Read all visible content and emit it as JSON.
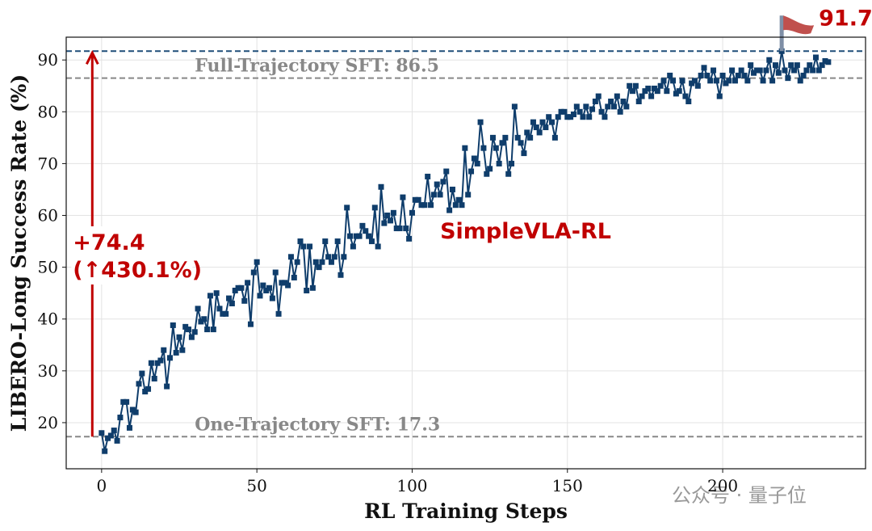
{
  "chart_data": {
    "type": "line",
    "xlabel": "RL Training Steps",
    "ylabel": "LIBERO-Long Success Rate (%)",
    "xlim": [
      -11.4,
      246
    ],
    "ylim": [
      11.1,
      94.4
    ],
    "xticks": [
      0,
      50,
      100,
      150,
      200
    ],
    "yticks": [
      20,
      30,
      40,
      50,
      60,
      70,
      80,
      90
    ],
    "grid": true,
    "series": [
      {
        "name": "SimpleVLA-RL",
        "color": "#0f3d6b",
        "x": [
          0,
          1,
          2,
          3,
          4,
          5,
          6,
          7,
          8,
          9,
          10,
          11,
          12,
          13,
          14,
          15,
          16,
          17,
          18,
          19,
          20,
          21,
          22,
          23,
          24,
          25,
          26,
          27,
          28,
          29,
          30,
          31,
          32,
          33,
          34,
          35,
          36,
          37,
          38,
          39,
          40,
          41,
          42,
          43,
          44,
          45,
          46,
          47,
          48,
          49,
          50,
          51,
          52,
          53,
          54,
          55,
          56,
          57,
          58,
          59,
          60,
          61,
          62,
          63,
          64,
          65,
          66,
          67,
          68,
          69,
          70,
          71,
          72,
          73,
          74,
          75,
          76,
          77,
          78,
          79,
          80,
          81,
          82,
          83,
          84,
          85,
          86,
          87,
          88,
          89,
          90,
          91,
          92,
          93,
          94,
          95,
          96,
          97,
          98,
          99,
          100,
          101,
          102,
          103,
          104,
          105,
          106,
          107,
          108,
          109,
          110,
          111,
          112,
          113,
          114,
          115,
          116,
          117,
          118,
          119,
          120,
          121,
          122,
          123,
          124,
          125,
          126,
          127,
          128,
          129,
          130,
          131,
          132,
          133,
          134,
          135,
          136,
          137,
          138,
          139,
          140,
          141,
          142,
          143,
          144,
          145,
          146,
          147,
          148,
          149,
          150,
          151,
          152,
          153,
          154,
          155,
          156,
          157,
          158,
          159,
          160,
          161,
          162,
          163,
          164,
          165,
          166,
          167,
          168,
          169,
          170,
          171,
          172,
          173,
          174,
          175,
          176,
          177,
          178,
          179,
          180,
          181,
          182,
          183,
          184,
          185,
          186,
          187,
          188,
          189,
          190,
          191,
          192,
          193,
          194,
          195,
          196,
          197,
          198,
          199,
          200,
          201,
          202,
          203,
          204,
          205,
          206,
          207,
          208,
          209,
          210,
          211,
          212,
          213,
          214,
          215,
          216,
          217,
          218,
          219,
          220,
          221,
          222,
          223,
          224,
          225,
          226,
          227,
          228,
          229,
          230,
          231,
          232,
          233,
          234
        ],
        "values": [
          18,
          14.5,
          17,
          17.5,
          18.5,
          16.5,
          21,
          24,
          24,
          19,
          22.5,
          22,
          27.5,
          29.5,
          26,
          26.5,
          31.5,
          28.5,
          31.5,
          32,
          34,
          27,
          32.5,
          38.8,
          33.5,
          36.5,
          34,
          38.5,
          38,
          36.5,
          37.5,
          42,
          39.5,
          40,
          38,
          44.5,
          38,
          45,
          42,
          41,
          41,
          44,
          43,
          45.5,
          46,
          46,
          43.5,
          47,
          39,
          49,
          51,
          44.5,
          46.5,
          45.5,
          46,
          44,
          49,
          41,
          47,
          47,
          46.5,
          52,
          48,
          51,
          55,
          54,
          45.5,
          54,
          46,
          51,
          50,
          51,
          55,
          52,
          51,
          52,
          55,
          48.5,
          52,
          61.5,
          56,
          54,
          56,
          56,
          58,
          57,
          56,
          55,
          61.5,
          54,
          65.5,
          58.5,
          60,
          59,
          60.5,
          57.5,
          57.5,
          63.5,
          57.5,
          55.5,
          60.5,
          63,
          63,
          62,
          62,
          67.5,
          62,
          64,
          66,
          64,
          66.5,
          68.5,
          61,
          65,
          62,
          63,
          62,
          73,
          64,
          68.5,
          71,
          70,
          78,
          73,
          68,
          69,
          75,
          73,
          70,
          74,
          75,
          68,
          70,
          81,
          75,
          74,
          72,
          76,
          75,
          78,
          77,
          76,
          78,
          77,
          79,
          78,
          75,
          79,
          80,
          80,
          79,
          79,
          79.5,
          81,
          80,
          79,
          81,
          79,
          80.5,
          82,
          83,
          80,
          79,
          81,
          82,
          81,
          83,
          80,
          82,
          81,
          85,
          84,
          85,
          82,
          83,
          84,
          84.5,
          83,
          84.5,
          84,
          85,
          86,
          84,
          87,
          86,
          83.5,
          84,
          86,
          83,
          82,
          85.5,
          86,
          85,
          87,
          88.5,
          87,
          86,
          88,
          86,
          83,
          87,
          85.5,
          86,
          88,
          86,
          87,
          88,
          87,
          86,
          89,
          87.5,
          88,
          88,
          86,
          88,
          90,
          86,
          89,
          87.5,
          91.7,
          88,
          86.5,
          89,
          88,
          89,
          86,
          87,
          88,
          89,
          88,
          90.5,
          88,
          89,
          89.8,
          89.6
        ]
      }
    ],
    "peak": {
      "value": 91.7,
      "label": "91.7",
      "color": "#1f4e79"
    },
    "reference_lines": [
      {
        "value": 86.5,
        "label": "Full-Trajectory SFT: 86.5",
        "color": "#888888"
      },
      {
        "value": 17.3,
        "label": "One-Trajectory SFT: 17.3",
        "color": "#888888"
      }
    ],
    "annotations": {
      "gain": "+74.4",
      "gain_pct": "(↑430.1%)",
      "method": "SimpleVLA-RL",
      "color": "#c00000"
    }
  },
  "watermark": "公众号 · 量子位"
}
